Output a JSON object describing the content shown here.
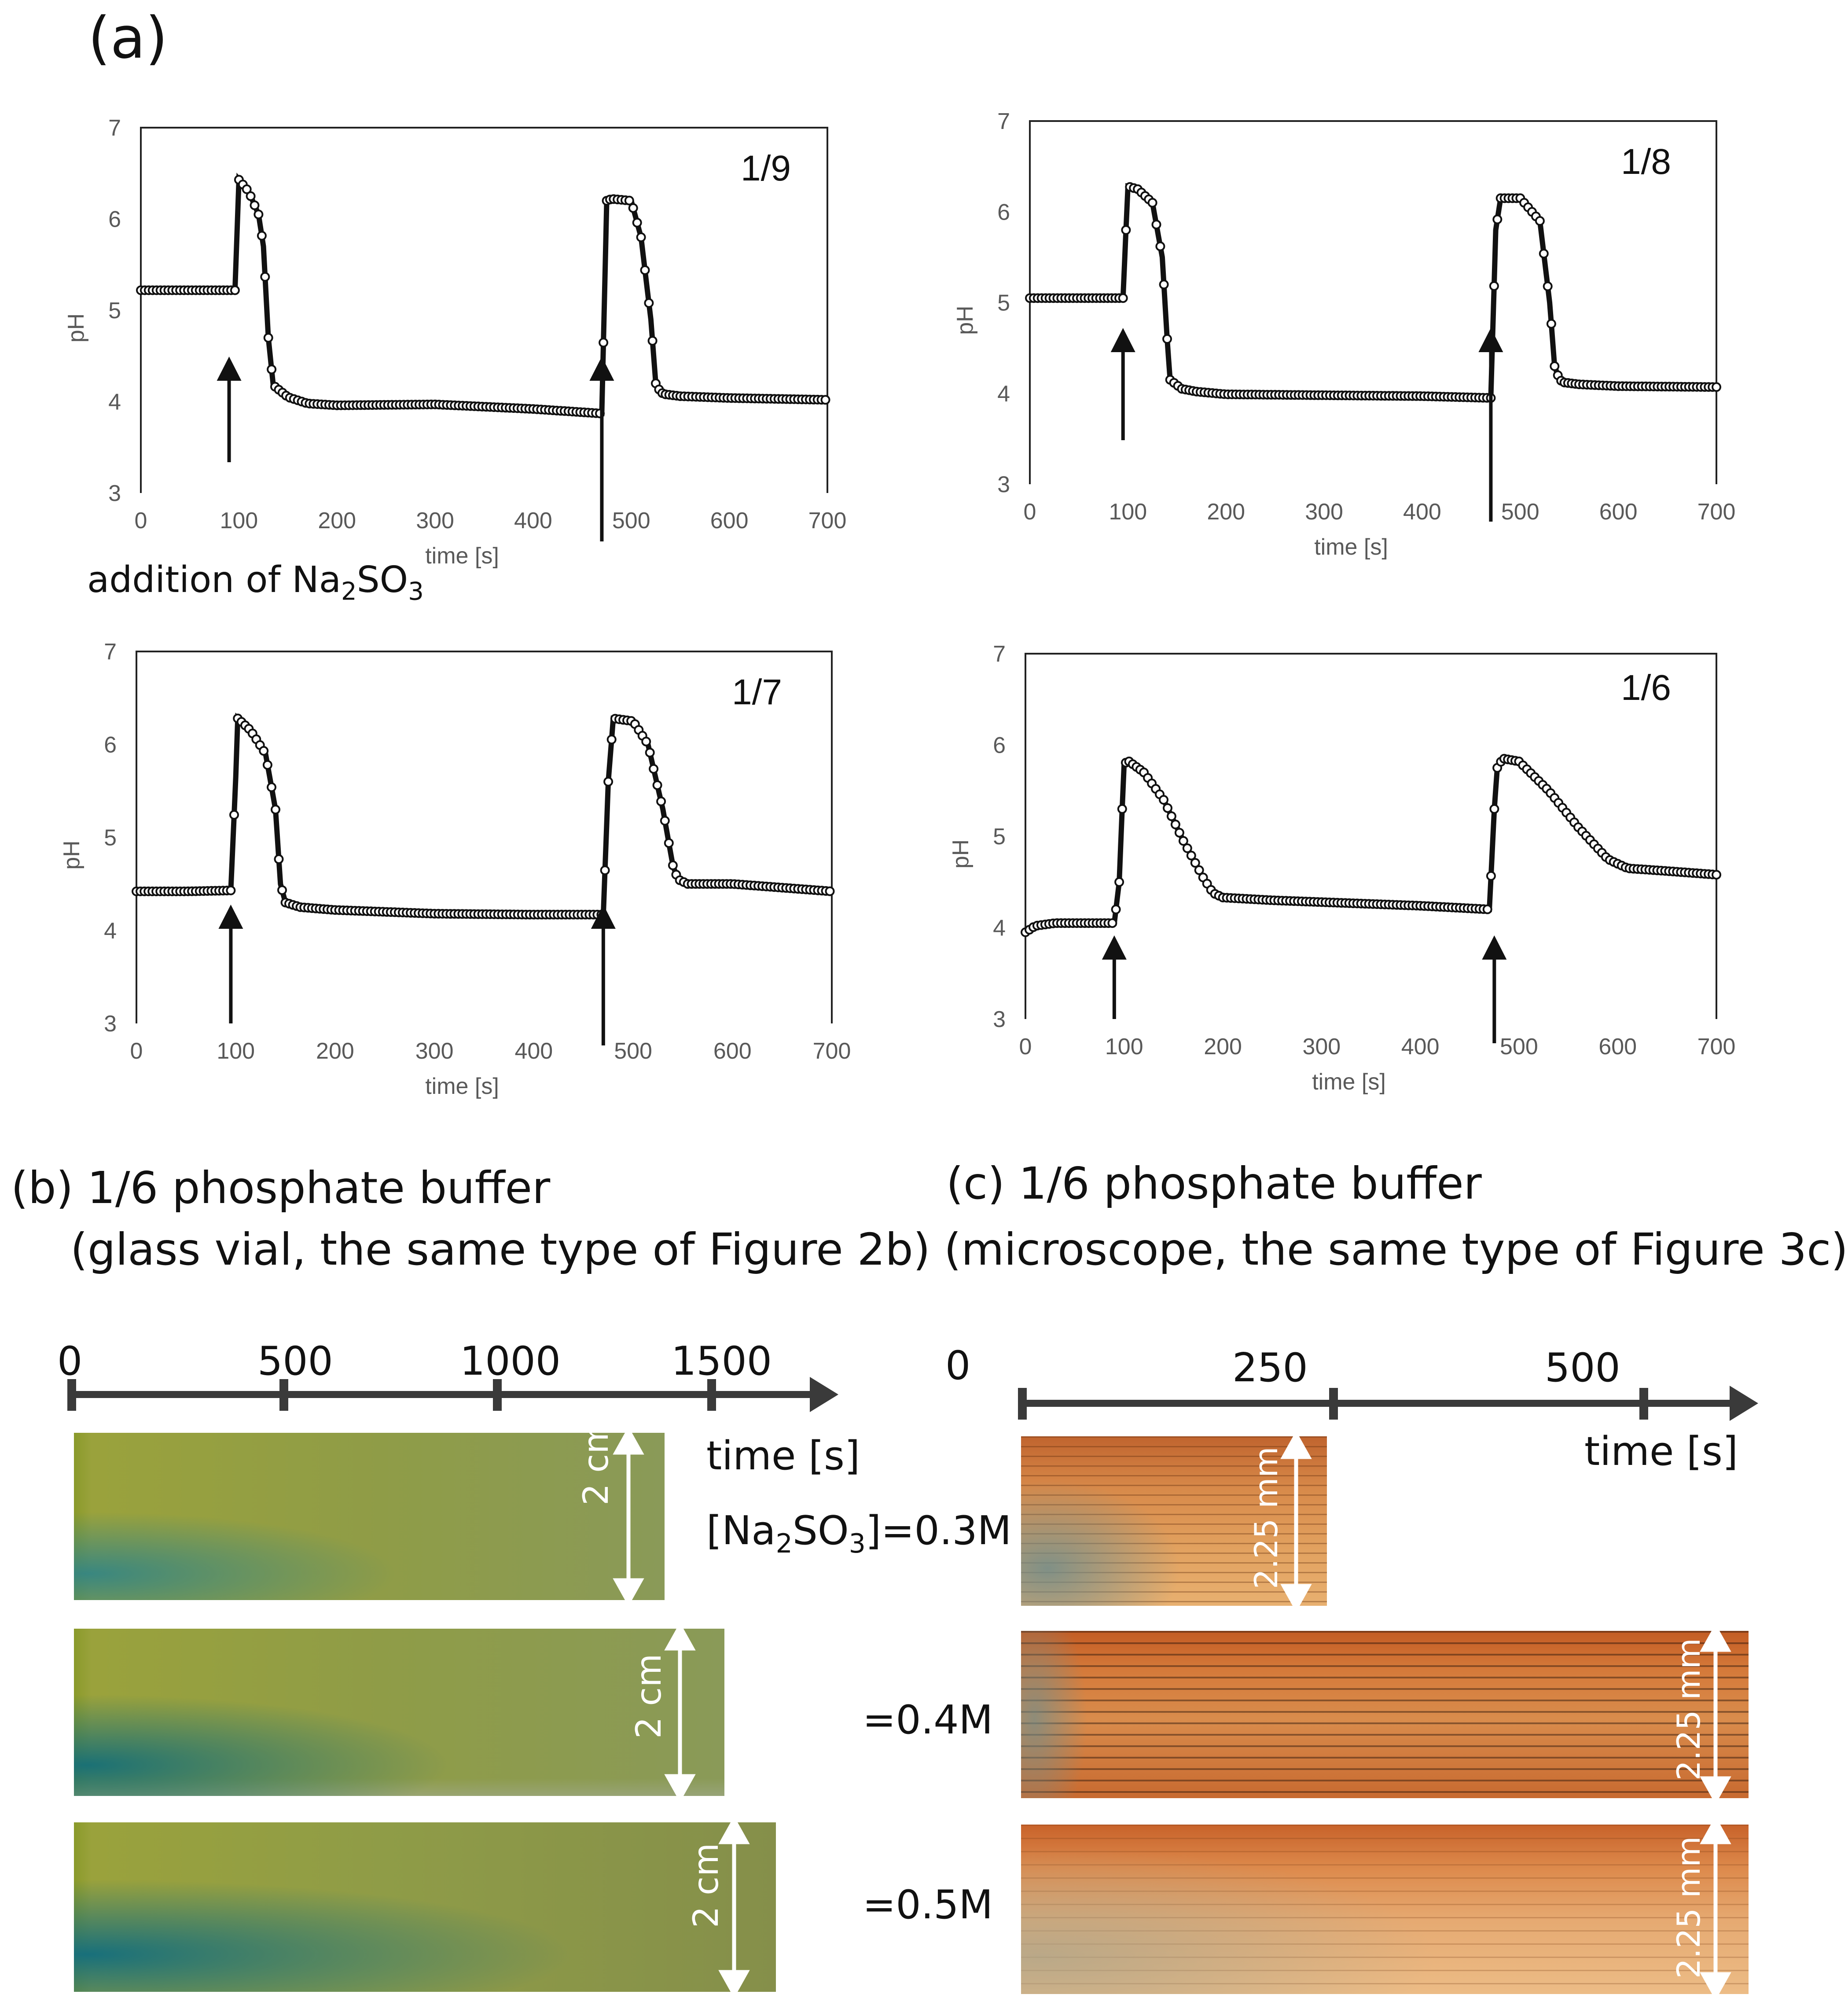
{
  "panel_a": {
    "label": "(a)",
    "annotation_prefix": "addition of Na",
    "annotation_sub1": "2",
    "annotation_mid": "SO",
    "annotation_sub2": "3"
  },
  "chart_data": [
    {
      "type": "scatter",
      "title": "1/9",
      "xlabel": "time [s]",
      "ylabel": "pH",
      "xlim": [
        0,
        700
      ],
      "ylim": [
        3,
        7
      ],
      "xticks": [
        "0",
        "100",
        "200",
        "300",
        "400",
        "500",
        "600",
        "700"
      ],
      "yticks": [
        "3",
        "4",
        "5",
        "6",
        "7"
      ],
      "series": [
        {
          "name": "pH",
          "x": [
            0,
            50,
            92,
            96,
            100,
            110,
            120,
            125,
            130,
            135,
            150,
            170,
            200,
            300,
            400,
            470,
            475,
            480,
            500,
            510,
            520,
            525,
            530,
            535,
            550,
            600,
            700
          ],
          "y": [
            5.22,
            5.22,
            5.22,
            5.22,
            6.43,
            6.3,
            6.05,
            5.7,
            4.7,
            4.18,
            4.05,
            3.98,
            3.96,
            3.97,
            3.92,
            3.87,
            6.2,
            6.22,
            6.2,
            5.8,
            4.9,
            4.2,
            4.1,
            4.08,
            4.06,
            4.04,
            4.02
          ]
        }
      ],
      "arrows_at": [
        90,
        470
      ]
    },
    {
      "type": "scatter",
      "title": "1/8",
      "xlabel": "time [s]",
      "ylabel": "pH",
      "xlim": [
        0,
        700
      ],
      "ylim": [
        3,
        7
      ],
      "xticks": [
        "0",
        "100",
        "200",
        "300",
        "400",
        "500",
        "600",
        "700"
      ],
      "yticks": [
        "3",
        "4",
        "5",
        "6",
        "7"
      ],
      "series": [
        {
          "name": "pH",
          "x": [
            0,
            50,
            95,
            98,
            100,
            110,
            125,
            135,
            140,
            143,
            155,
            170,
            200,
            300,
            400,
            470,
            475,
            480,
            500,
            520,
            530,
            535,
            540,
            545,
            560,
            600,
            700
          ],
          "y": [
            5.05,
            5.05,
            5.05,
            5.8,
            6.28,
            6.25,
            6.1,
            5.5,
            4.6,
            4.15,
            4.05,
            4.02,
            3.99,
            3.98,
            3.97,
            3.95,
            5.8,
            6.15,
            6.15,
            5.9,
            5.0,
            4.3,
            4.15,
            4.12,
            4.1,
            4.08,
            4.07
          ]
        }
      ],
      "arrows_at": [
        95,
        470
      ]
    },
    {
      "type": "scatter",
      "title": "1/7",
      "xlabel": "time [s]",
      "ylabel": "pH",
      "xlim": [
        0,
        700
      ],
      "ylim": [
        3,
        7
      ],
      "xticks": [
        "0",
        "100",
        "200",
        "300",
        "400",
        "500",
        "600",
        "700"
      ],
      "yticks": [
        "3",
        "4",
        "5",
        "6",
        "7"
      ],
      "series": [
        {
          "name": "pH",
          "x": [
            0,
            50,
            95,
            100,
            102,
            115,
            130,
            140,
            145,
            150,
            165,
            200,
            300,
            400,
            470,
            475,
            480,
            500,
            515,
            530,
            540,
            545,
            555,
            600,
            650,
            700
          ],
          "y": [
            4.42,
            4.42,
            4.43,
            5.65,
            6.28,
            6.15,
            5.9,
            5.3,
            4.5,
            4.3,
            4.25,
            4.22,
            4.18,
            4.17,
            4.17,
            5.6,
            6.28,
            6.25,
            6.0,
            5.3,
            4.7,
            4.55,
            4.5,
            4.5,
            4.46,
            4.42
          ]
        }
      ],
      "arrows_at": [
        95,
        470
      ]
    },
    {
      "type": "scatter",
      "title": "1/6",
      "xlabel": "time [s]",
      "ylabel": "pH",
      "xlim": [
        0,
        700
      ],
      "ylim": [
        3,
        7
      ],
      "xticks": [
        "0",
        "100",
        "200",
        "300",
        "400",
        "500",
        "600",
        "700"
      ],
      "yticks": [
        "3",
        "4",
        "5",
        "6",
        "7"
      ],
      "series": [
        {
          "name": "pH",
          "x": [
            0,
            10,
            30,
            60,
            90,
            95,
            98,
            100,
            105,
            120,
            140,
            160,
            180,
            190,
            200,
            250,
            300,
            400,
            470,
            475,
            478,
            480,
            485,
            500,
            530,
            560,
            590,
            610,
            650,
            700
          ],
          "y": [
            3.95,
            4.02,
            4.05,
            4.05,
            4.05,
            4.5,
            5.3,
            5.8,
            5.82,
            5.7,
            5.4,
            4.95,
            4.55,
            4.38,
            4.33,
            4.3,
            4.28,
            4.24,
            4.2,
            5.3,
            5.75,
            5.8,
            5.85,
            5.82,
            5.5,
            5.1,
            4.75,
            4.65,
            4.62,
            4.58
          ]
        }
      ],
      "arrows_at": [
        90,
        475
      ]
    }
  ],
  "panel_b": {
    "title": "(b) 1/6 phosphate buffer",
    "subtitle": "(glass vial, the same type of Figure 2b)",
    "axis_ticks": [
      "0",
      "500",
      "1000",
      "1500"
    ],
    "time_label": "time [s]",
    "scale": "2 cm",
    "conc_prefix": "[Na",
    "conc_sub": "2",
    "conc_mid": "SO",
    "conc_sub2": "3",
    "conc_suffix": "]=0.3M",
    "conc_2": "=0.4M",
    "conc_3": "=0.5M"
  },
  "panel_c": {
    "title": "(c) 1/6 phosphate buffer",
    "subtitle": "(microscope, the same type of Figure 3c)",
    "axis_ticks": [
      "0",
      "250",
      "500"
    ],
    "time_label": "time [s]",
    "scale": "2.25 mm"
  }
}
